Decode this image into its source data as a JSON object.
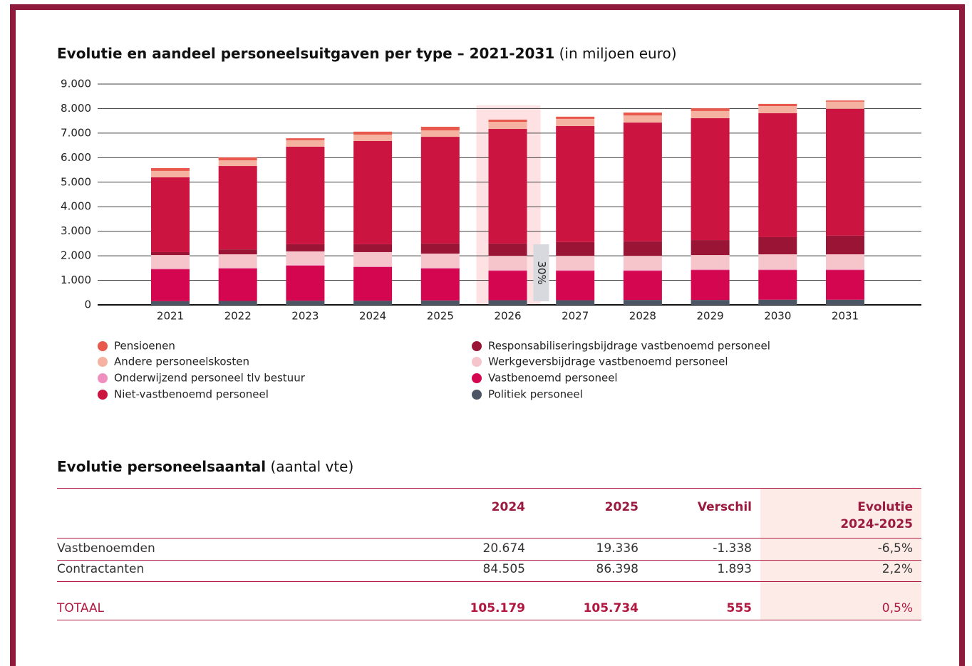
{
  "chart_data": {
    "type": "stacked_bar",
    "title": "Evolutie en aandeel personeelsuitgaven per type – 2021-2031",
    "subtitle": "(in miljoen euro)",
    "categories": [
      "2021",
      "2022",
      "2023",
      "2024",
      "2025",
      "2026",
      "2027",
      "2028",
      "2029",
      "2030",
      "2031"
    ],
    "series": [
      {
        "name": "Politiek personeel",
        "color": "#4b5563",
        "values": [
          150,
          160,
          170,
          170,
          180,
          190,
          190,
          200,
          200,
          210,
          210
        ]
      },
      {
        "name": "Vastbenoemd personeel",
        "color": "#d4064f",
        "values": [
          1300,
          1320,
          1430,
          1370,
          1300,
          1200,
          1200,
          1190,
          1220,
          1210,
          1210
        ]
      },
      {
        "name": "Onderwijzend personeel tlv bestuur",
        "color": "#ef8fbd",
        "values": [
          30,
          30,
          30,
          30,
          30,
          30,
          30,
          30,
          30,
          30,
          30
        ]
      },
      {
        "name": "Werkgeversbijdrage vastbenoemd personeel",
        "color": "#f6c4cb",
        "values": [
          550,
          550,
          550,
          580,
          580,
          580,
          580,
          580,
          580,
          610,
          610
        ]
      },
      {
        "name": "Responsabiliseringsbijdrage vastbenoemd personeel",
        "color": "#9a1436",
        "values": [
          120,
          200,
          290,
          320,
          410,
          500,
          560,
          590,
          610,
          700,
          760
        ]
      },
      {
        "name": "Niet-vastbenoemd personeel",
        "color": "#cc1440",
        "values": [
          3050,
          3400,
          3980,
          4210,
          4350,
          4670,
          4730,
          4840,
          4970,
          5050,
          5170
        ]
      },
      {
        "name": "Andere personeelskosten",
        "color": "#f6b2a0",
        "values": [
          260,
          230,
          260,
          260,
          260,
          290,
          290,
          290,
          290,
          290,
          290
        ]
      },
      {
        "name": "Pensioenen",
        "color": "#e8584d",
        "values": [
          115,
          120,
          80,
          120,
          150,
          90,
          90,
          120,
          110,
          90,
          50
        ]
      }
    ],
    "ylim": [
      0,
      9000
    ],
    "yticks": [
      0,
      {
        "value": 1000,
        "label": "1.000"
      },
      {
        "value": 2000,
        "label": "2.000"
      },
      {
        "value": 3000,
        "label": "3.000"
      },
      {
        "value": 4000,
        "label": "4.000"
      },
      {
        "value": 5000,
        "label": "5.000"
      },
      {
        "value": 6000,
        "label": "6.000"
      },
      {
        "value": 7000,
        "label": "7.000"
      },
      {
        "value": 8000,
        "label": "8.000"
      },
      {
        "value": 9000,
        "label": "9.000"
      }
    ],
    "grid": true,
    "annotation": "30%"
  },
  "table": {
    "title": "Evolutie personeelsaantal",
    "subtitle": "(aantal vte)",
    "columns": [
      "2024",
      "2025",
      "Verschil",
      "Evolutie 2024-2025"
    ],
    "rows": [
      [
        "Vastbenoemden",
        "20.674",
        "19.336",
        "-1.338",
        "-6,5%"
      ],
      [
        "Contractanten",
        "84.505",
        "86.398",
        "1.893",
        "2,2%"
      ],
      [
        "TOTAAL",
        "105.179",
        "105.734",
        "555",
        "0,5%"
      ]
    ]
  }
}
